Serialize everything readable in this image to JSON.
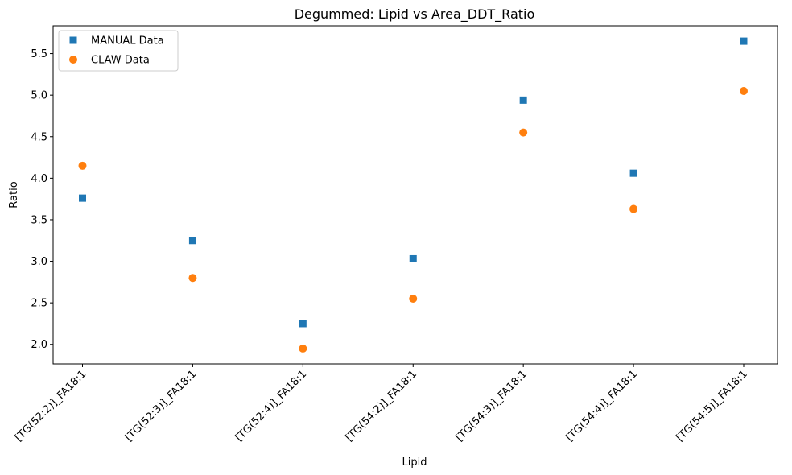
{
  "chart_data": {
    "type": "scatter",
    "title": "Degummed: Lipid vs Area_DDT_Ratio",
    "xlabel": "Lipid",
    "ylabel": "Ratio",
    "categories": [
      "[TG(52:2)]_FA18:1",
      "[TG(52:3)]_FA18:1",
      "[TG(52:4)]_FA18:1",
      "[TG(54:2)]_FA18:1",
      "[TG(54:3)]_FA18:1",
      "[TG(54:4)]_FA18:1",
      "[TG(54:5)]_FA18:1"
    ],
    "series": [
      {
        "name": "MANUAL Data",
        "marker": "square",
        "color": "#1f77b4",
        "values": [
          3.76,
          3.25,
          2.25,
          3.03,
          4.94,
          4.06,
          5.65
        ]
      },
      {
        "name": "CLAW Data",
        "marker": "circle",
        "color": "#ff7f0e",
        "values": [
          4.15,
          2.8,
          1.95,
          2.55,
          4.55,
          3.63,
          5.05
        ]
      }
    ],
    "yticks": [
      2.0,
      2.5,
      3.0,
      3.5,
      4.0,
      4.5,
      5.0,
      5.5
    ],
    "ytick_labels": [
      "2.0",
      "2.5",
      "3.0",
      "3.5",
      "4.0",
      "4.5",
      "5.0",
      "5.5"
    ],
    "ylim": [
      1.765,
      5.835
    ],
    "grid": false,
    "legend_position": "top-left"
  }
}
